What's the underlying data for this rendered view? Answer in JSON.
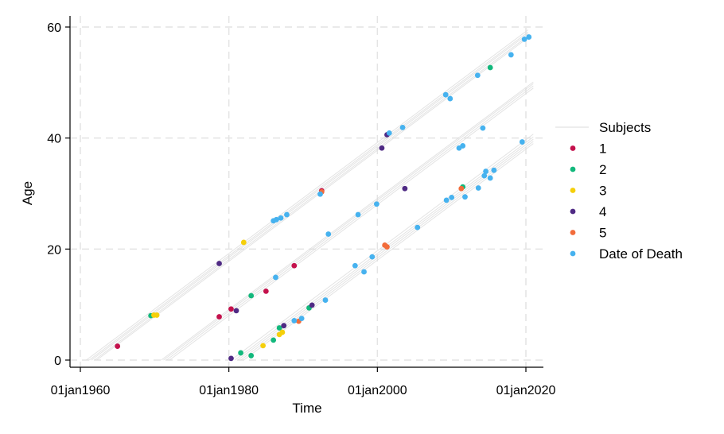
{
  "chart_data": {
    "type": "scatter",
    "xlabel": "Time",
    "ylabel": "Age",
    "xlim": [
      1960,
      2022
    ],
    "ylim": [
      -1,
      62
    ],
    "x_ticks": [
      {
        "value": 1960,
        "label": "01jan1960"
      },
      {
        "value": 1980,
        "label": "01jan1980"
      },
      {
        "value": 2000,
        "label": "01jan2000"
      },
      {
        "value": 2020,
        "label": "01jan2020"
      }
    ],
    "y_ticks": [
      {
        "value": 0,
        "label": "0"
      },
      {
        "value": 20,
        "label": "20"
      },
      {
        "value": 40,
        "label": "40"
      },
      {
        "value": 60,
        "label": "60"
      }
    ],
    "grid": true,
    "legend_position": "right",
    "legend_title_series": "Subjects",
    "lifelines": [
      {
        "birth": 1960.8,
        "end": 2020.3
      },
      {
        "birth": 1961.2,
        "end": 2020.3
      },
      {
        "birth": 1961.5,
        "end": 2020.3
      },
      {
        "birth": 1961.9,
        "end": 2020.3
      },
      {
        "birth": 1962.2,
        "end": 2020.3
      },
      {
        "birth": 1970.9,
        "end": 2021.0
      },
      {
        "birth": 1971.2,
        "end": 2021.0
      },
      {
        "birth": 1971.6,
        "end": 2021.0
      },
      {
        "birth": 1972.0,
        "end": 2021.0
      },
      {
        "birth": 1980.3,
        "end": 2021.0
      },
      {
        "birth": 1980.8,
        "end": 2021.0
      },
      {
        "birth": 1981.2,
        "end": 2021.0
      },
      {
        "birth": 1981.6,
        "end": 2021.0
      },
      {
        "birth": 1982.0,
        "end": 2021.0
      }
    ],
    "series": [
      {
        "name": "1",
        "color": "#c4114c",
        "points": [
          {
            "x": 1965.0,
            "y": 2.5
          },
          {
            "x": 1978.7,
            "y": 7.8
          },
          {
            "x": 1980.3,
            "y": 9.2
          },
          {
            "x": 1985.0,
            "y": 12.4
          },
          {
            "x": 1988.8,
            "y": 17.0
          },
          {
            "x": 1992.5,
            "y": 30.5
          }
        ]
      },
      {
        "name": "2",
        "color": "#12b87c",
        "points": [
          {
            "x": 1969.5,
            "y": 8.0
          },
          {
            "x": 1981.6,
            "y": 1.3
          },
          {
            "x": 1983.0,
            "y": 0.8
          },
          {
            "x": 1983.0,
            "y": 11.6
          },
          {
            "x": 1986.0,
            "y": 3.6
          },
          {
            "x": 1986.8,
            "y": 5.8
          },
          {
            "x": 1990.8,
            "y": 9.4
          },
          {
            "x": 2011.5,
            "y": 31.2
          },
          {
            "x": 2015.2,
            "y": 52.7
          }
        ]
      },
      {
        "name": "3",
        "color": "#f5cf0a",
        "points": [
          {
            "x": 1969.9,
            "y": 8.1
          },
          {
            "x": 1970.3,
            "y": 8.1
          },
          {
            "x": 1982.0,
            "y": 21.2
          },
          {
            "x": 1984.6,
            "y": 2.6
          },
          {
            "x": 1986.8,
            "y": 4.6
          },
          {
            "x": 1987.2,
            "y": 5.0
          }
        ]
      },
      {
        "name": "4",
        "color": "#4f2a84",
        "points": [
          {
            "x": 1978.7,
            "y": 17.4
          },
          {
            "x": 1980.3,
            "y": 0.3
          },
          {
            "x": 1981.0,
            "y": 8.9
          },
          {
            "x": 1987.4,
            "y": 6.2
          },
          {
            "x": 1991.2,
            "y": 9.9
          },
          {
            "x": 2000.6,
            "y": 38.2
          },
          {
            "x": 2001.3,
            "y": 40.6
          },
          {
            "x": 2003.7,
            "y": 30.9
          }
        ]
      },
      {
        "name": "5",
        "color": "#f26c3b",
        "points": [
          {
            "x": 1989.4,
            "y": 7.0
          },
          {
            "x": 1992.5,
            "y": 30.3
          },
          {
            "x": 2001.0,
            "y": 20.7
          },
          {
            "x": 2001.3,
            "y": 20.4
          },
          {
            "x": 2011.3,
            "y": 30.9
          }
        ]
      },
      {
        "name": "Date of Death",
        "color": "#46b2ef",
        "points": [
          {
            "x": 1986.0,
            "y": 25.1
          },
          {
            "x": 1986.4,
            "y": 25.3
          },
          {
            "x": 1987.0,
            "y": 25.6
          },
          {
            "x": 1987.8,
            "y": 26.2
          },
          {
            "x": 1992.3,
            "y": 29.9
          },
          {
            "x": 2001.6,
            "y": 40.9
          },
          {
            "x": 2003.4,
            "y": 41.9
          },
          {
            "x": 2009.2,
            "y": 47.8
          },
          {
            "x": 2009.8,
            "y": 47.1
          },
          {
            "x": 2013.5,
            "y": 51.3
          },
          {
            "x": 2018.0,
            "y": 55.0
          },
          {
            "x": 2019.8,
            "y": 57.8
          },
          {
            "x": 2020.4,
            "y": 58.2
          },
          {
            "x": 1986.3,
            "y": 14.9
          },
          {
            "x": 1993.4,
            "y": 22.7
          },
          {
            "x": 1997.4,
            "y": 26.2
          },
          {
            "x": 1999.9,
            "y": 28.1
          },
          {
            "x": 2014.2,
            "y": 41.8
          },
          {
            "x": 1988.8,
            "y": 7.1
          },
          {
            "x": 1989.8,
            "y": 7.5
          },
          {
            "x": 1993.0,
            "y": 10.8
          },
          {
            "x": 1997.0,
            "y": 17.0
          },
          {
            "x": 1998.2,
            "y": 15.9
          },
          {
            "x": 1999.3,
            "y": 18.6
          },
          {
            "x": 2005.4,
            "y": 23.9
          },
          {
            "x": 2009.3,
            "y": 28.8
          },
          {
            "x": 2010.0,
            "y": 29.3
          },
          {
            "x": 2011.0,
            "y": 38.2
          },
          {
            "x": 2011.5,
            "y": 38.6
          },
          {
            "x": 2011.8,
            "y": 29.4
          },
          {
            "x": 2013.6,
            "y": 31.0
          },
          {
            "x": 2014.4,
            "y": 33.2
          },
          {
            "x": 2014.6,
            "y": 34.0
          },
          {
            "x": 2015.2,
            "y": 32.8
          },
          {
            "x": 2015.7,
            "y": 34.2
          },
          {
            "x": 2019.5,
            "y": 39.3
          }
        ]
      }
    ]
  }
}
